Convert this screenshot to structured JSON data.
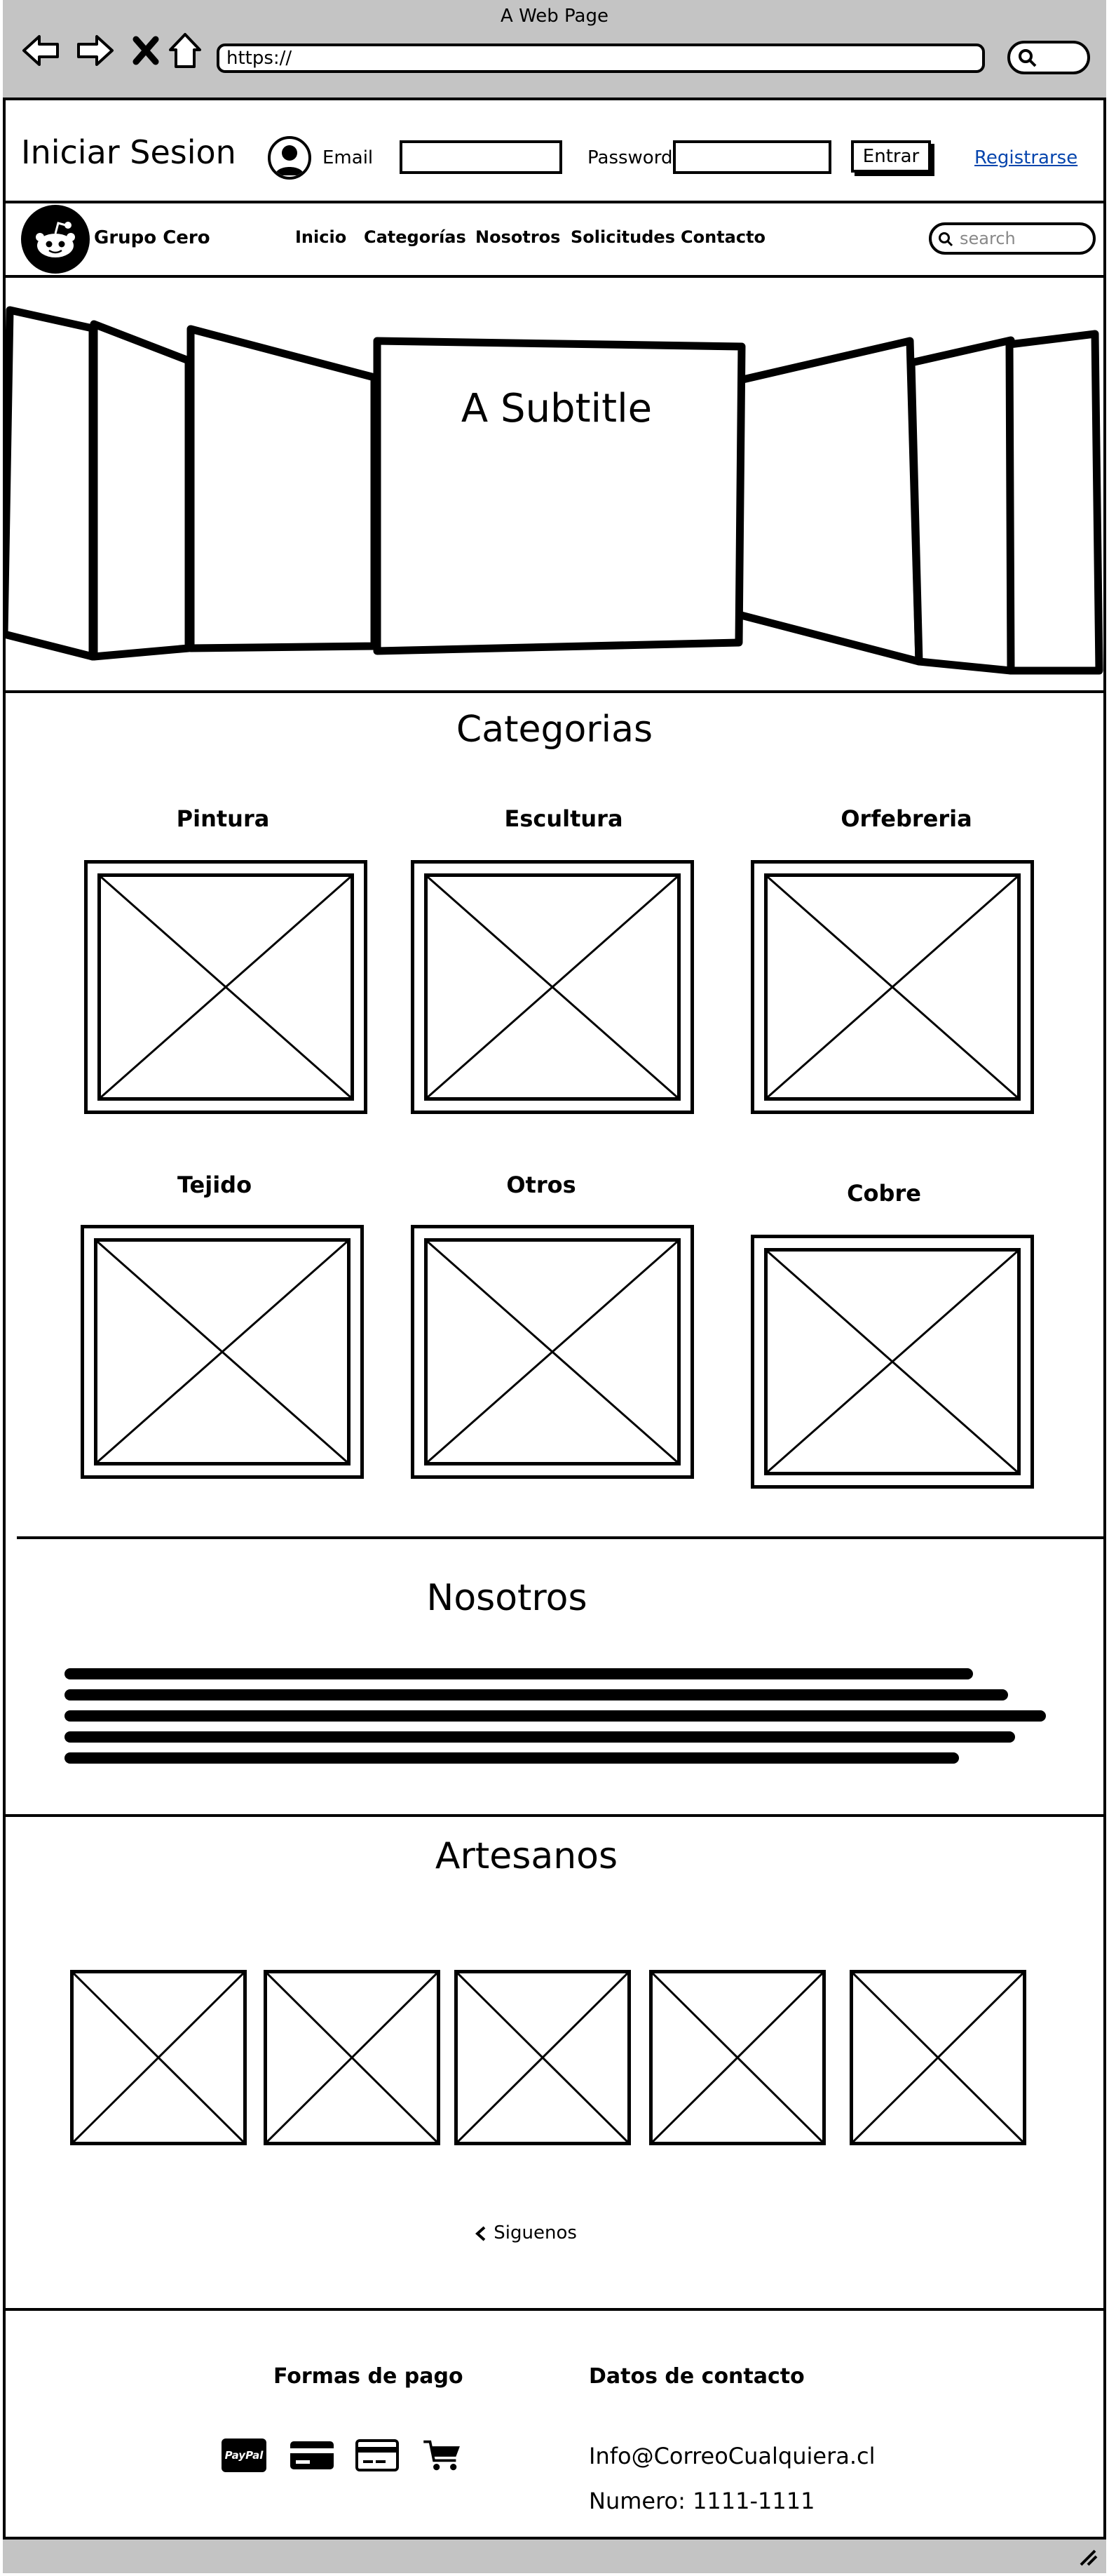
{
  "browser": {
    "window_title": "A Web Page",
    "url": "https://"
  },
  "login": {
    "title": "Iniciar Sesion",
    "email_label": "Email",
    "email_value": "",
    "password_label": "Password",
    "password_value": "",
    "submit_label": "Entrar",
    "register_link": "Registrarse"
  },
  "navbar": {
    "brand": "Grupo Cero",
    "items": [
      "Inicio",
      "Categorías",
      "Nosotros",
      "Solicitudes",
      "Contacto"
    ],
    "search_placeholder": "search"
  },
  "hero": {
    "subtitle": "A Subtitle"
  },
  "categories": {
    "title": "Categorias",
    "items": [
      "Pintura",
      "Escultura",
      "Orfebreria",
      "Tejido",
      "Otros",
      "Cobre"
    ]
  },
  "about": {
    "title": "Nosotros"
  },
  "artisans": {
    "title": "Artesanos",
    "follow_label": "Siguenos"
  },
  "footer": {
    "payment_title": "Formas de pago",
    "payment_icons": [
      "paypal-icon",
      "credit-card-icon",
      "credit-card-outline-icon",
      "shopping-cart-icon"
    ],
    "paypal_text": "PayPal",
    "contact_title": "Datos de contacto",
    "email": "Info@CorreoCualquiera.cl",
    "phone": "Numero: 1111-1111"
  }
}
